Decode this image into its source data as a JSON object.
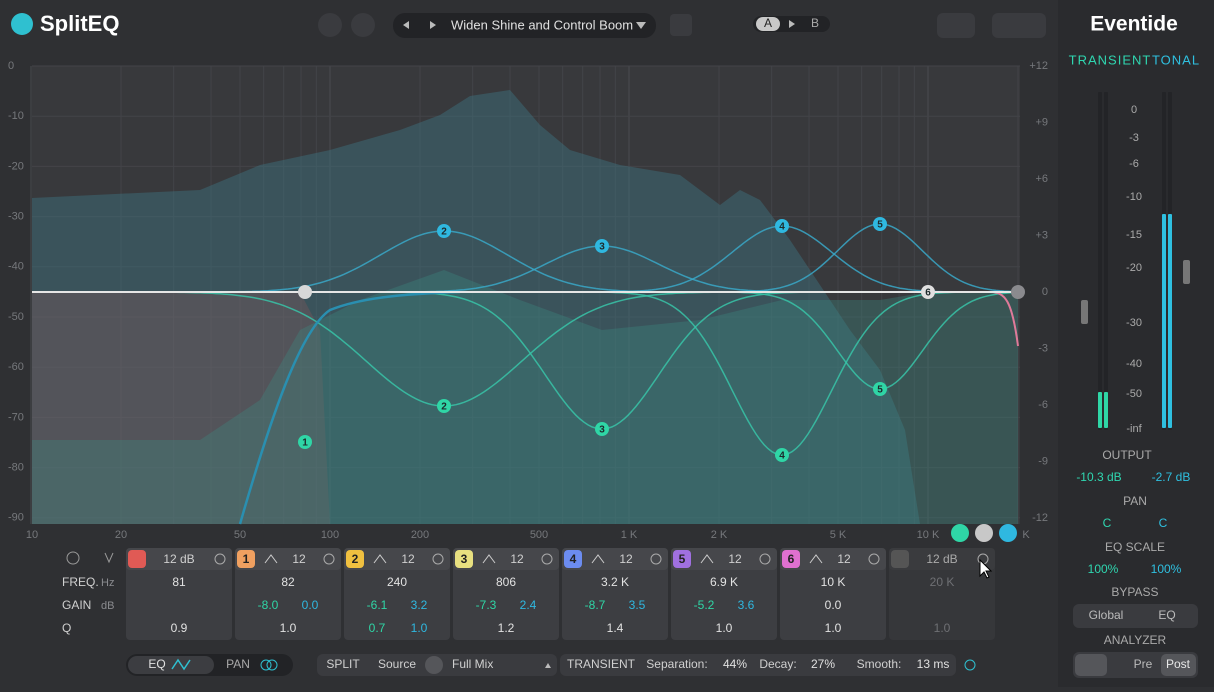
{
  "header": {
    "logo": "SplitEQ",
    "preset": "Widen Shine and Control Boom",
    "ab": [
      "A",
      "B"
    ],
    "brand": "Eventide"
  },
  "graph": {
    "left_axis": [
      "0",
      "-10",
      "-20",
      "-30",
      "-40",
      "-50",
      "-60",
      "-70",
      "-80",
      "-90"
    ],
    "right_axis": [
      "+12",
      "+9",
      "+6",
      "+3",
      "0",
      "-3",
      "-6",
      "-9",
      "-12"
    ],
    "freq_axis": [
      "10",
      "20",
      "50",
      "100",
      "200",
      "500",
      "1 K",
      "2 K",
      "5 K",
      "10 K",
      "K"
    ],
    "nodes": [
      "1",
      "2",
      "2",
      "3",
      "3",
      "4",
      "4",
      "5",
      "5",
      "6"
    ]
  },
  "bands": {
    "row_labels": [
      {
        "name": "FREQ.",
        "unit": "Hz"
      },
      {
        "name": "GAIN",
        "unit": "dB"
      },
      {
        "name": "Q"
      }
    ],
    "columns": [
      {
        "slope": "12 dB",
        "freq": "81",
        "gain": [],
        "q": [
          "0.9"
        ]
      },
      {
        "number": "1",
        "slope": "12",
        "freq": "82",
        "gain": [
          "-8.0",
          "0.0"
        ],
        "q": [
          "1.0"
        ]
      },
      {
        "number": "2",
        "slope": "12",
        "freq": "240",
        "gain": [
          "-6.1",
          "3.2"
        ],
        "q": [
          "0.7",
          "1.0"
        ]
      },
      {
        "number": "3",
        "slope": "12",
        "freq": "806",
        "gain": [
          "-7.3",
          "2.4"
        ],
        "q": [
          "1.2"
        ]
      },
      {
        "number": "4",
        "slope": "12",
        "freq": "3.2 K",
        "gain": [
          "-8.7",
          "3.5"
        ],
        "q": [
          "1.4"
        ]
      },
      {
        "number": "5",
        "slope": "12",
        "freq": "6.9 K",
        "gain": [
          "-5.2",
          "3.6"
        ],
        "q": [
          "1.0"
        ]
      },
      {
        "number": "6",
        "slope": "12",
        "freq": "10 K",
        "gain": [
          "0.0"
        ],
        "q": [
          "1.0"
        ]
      },
      {
        "slope": "12 dB",
        "freq": "20 K",
        "gain": [],
        "q": [
          "1.0"
        ]
      }
    ]
  },
  "footer": {
    "eq": "EQ",
    "pan": "PAN",
    "split": "SPLIT",
    "source": "Source",
    "source_value": "Full Mix",
    "transient": "TRANSIENT",
    "separation": "Separation:",
    "separation_value": "44%",
    "decay": "Decay:",
    "decay_value": "27%",
    "smooth": "Smooth:",
    "smooth_value": "13 ms"
  },
  "side": {
    "modes": [
      "TRANSIENT",
      "TONAL"
    ],
    "meter_scale": [
      "0",
      "-3",
      "-6",
      "-10",
      "-15",
      "-20",
      "-30",
      "-40",
      "-50",
      "-inf"
    ],
    "output": "OUTPUT",
    "output_values": [
      "-10.3 dB",
      "-2.7 dB"
    ],
    "pan": "PAN",
    "pan_values": [
      "C",
      "C"
    ],
    "eq_scale": "EQ SCALE",
    "eq_scale_values": [
      "100%",
      "100%"
    ],
    "bypass": "BYPASS",
    "bypass_buttons": [
      "Global",
      "EQ"
    ],
    "analyzer": "ANALYZER",
    "analyzer_buttons": [
      "Pre",
      "Post"
    ]
  }
}
